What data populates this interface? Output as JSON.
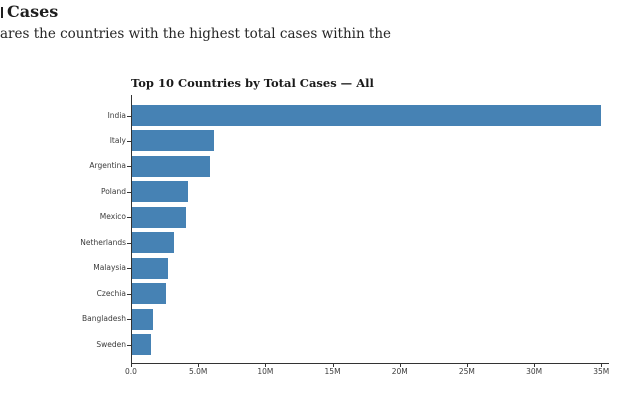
{
  "page": {
    "heading_fragment": "Cases",
    "description_fragment": "ares the countries with the highest total cases within the"
  },
  "chart_data": {
    "type": "bar",
    "orientation": "horizontal",
    "title": "Top 10 Countries by Total Cases — All",
    "categories": [
      "India",
      "Italy",
      "Argentina",
      "Poland",
      "Mexico",
      "Netherlands",
      "Malaysia",
      "Czechia",
      "Bangladesh",
      "Sweden"
    ],
    "values": [
      34900000,
      6100000,
      5800000,
      4200000,
      4000000,
      3100000,
      2700000,
      2500000,
      1600000,
      1400000
    ],
    "xlabel": "",
    "ylabel": "",
    "xlim": [
      0,
      35500000
    ],
    "x_tick_values": [
      0,
      5000000,
      10000000,
      15000000,
      20000000,
      25000000,
      30000000,
      35000000
    ],
    "x_tick_labels": [
      "0.0",
      "5.0M",
      "10M",
      "15M",
      "20M",
      "25M",
      "30M",
      "35M"
    ],
    "grid": false,
    "legend": null,
    "bar_color": "#4682b4",
    "axis_color": "#333333",
    "tick_label_color": "#3c3c3c",
    "title_color": "#1a1a1a"
  }
}
